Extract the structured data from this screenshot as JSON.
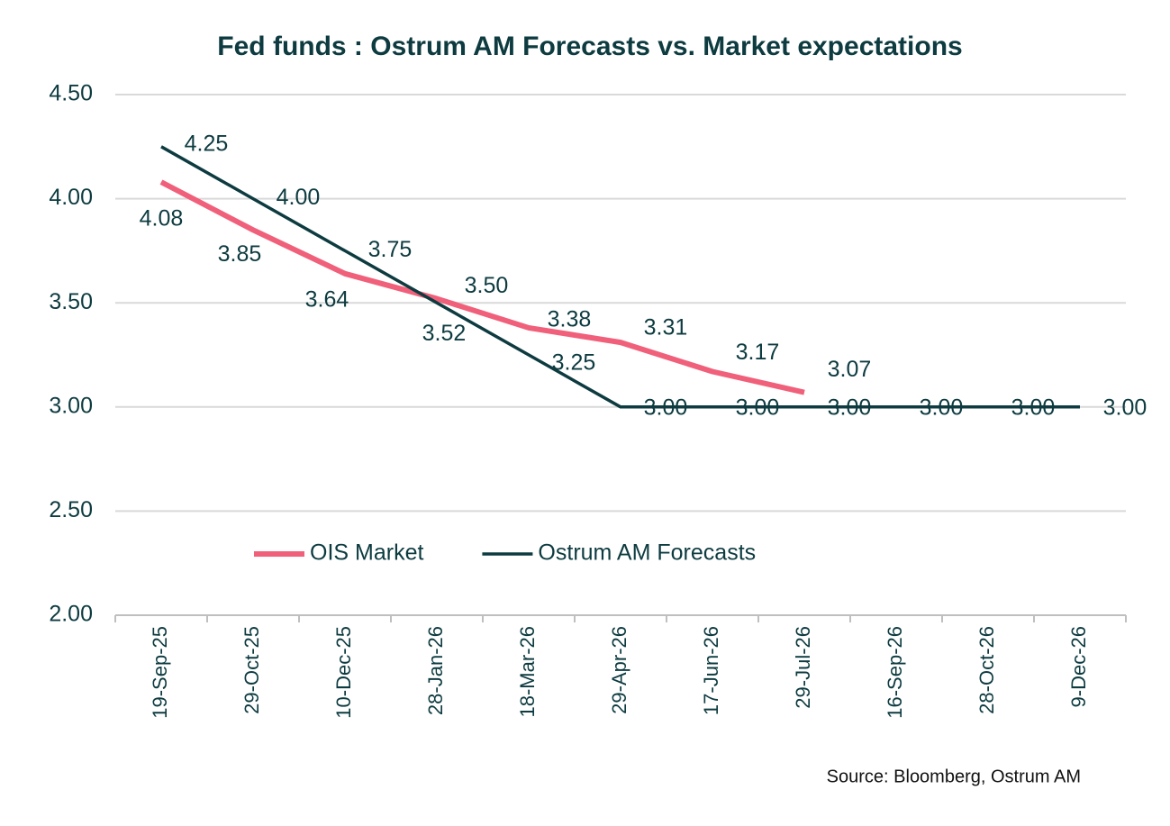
{
  "chart_data": {
    "type": "line",
    "title": "Fed funds : Ostrum AM Forecasts vs. Market expectations",
    "categories": [
      "19-Sep-25",
      "29-Oct-25",
      "10-Dec-25",
      "28-Jan-26",
      "18-Mar-26",
      "29-Apr-26",
      "17-Jun-26",
      "29-Jul-26",
      "16-Sep-26",
      "28-Oct-26",
      "9-Dec-26"
    ],
    "series": [
      {
        "name": "OIS Market",
        "color": "#f0607a",
        "values": [
          4.08,
          3.85,
          3.64,
          3.52,
          3.38,
          3.31,
          3.17,
          3.07,
          null,
          null,
          null
        ],
        "value_labels": [
          "4.08",
          "3.85",
          "3.64",
          "3.52",
          "3.38",
          "3.31",
          "3.17",
          "3.07",
          null,
          null,
          null
        ]
      },
      {
        "name": "Ostrum AM Forecasts",
        "color": "#0d3b40",
        "values": [
          4.25,
          4.0,
          3.75,
          3.5,
          3.25,
          3.0,
          3.0,
          3.0,
          3.0,
          3.0,
          3.0
        ],
        "value_labels": [
          "4.25",
          "4.00",
          "3.75",
          "3.50",
          "3.25",
          "3.00",
          "3.00",
          "3.00",
          "3.00",
          "3.00",
          "3.00"
        ]
      }
    ],
    "ylim": [
      2,
      4.5
    ],
    "yticks": [
      {
        "value": 2,
        "label": "2.00"
      },
      {
        "value": 2.5,
        "label": "2.50"
      },
      {
        "value": 3,
        "label": "3.00"
      },
      {
        "value": 3.5,
        "label": "3.50"
      },
      {
        "value": 4,
        "label": "4.00"
      },
      {
        "value": 4.5,
        "label": "4.50"
      }
    ],
    "grid": true,
    "legend": "lower center",
    "source": "Source: Bloomberg,  Ostrum AM"
  }
}
